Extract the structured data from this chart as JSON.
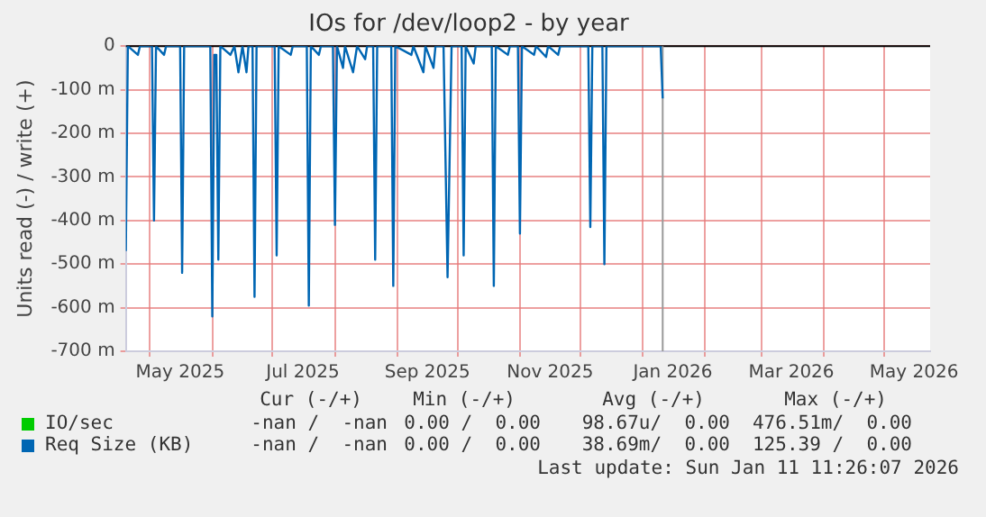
{
  "chart_data": {
    "type": "line",
    "title": "IOs for /dev/loop2 - by year",
    "ylabel": "Units read (-) / write (+)",
    "xlim": [
      "2025-04-19",
      "2026-05-24"
    ],
    "xticks": [
      {
        "value": "2025-05-01",
        "label": null
      },
      {
        "value": "2025-05-16",
        "label": "May 2025"
      },
      {
        "value": "2025-06-01",
        "label": null
      },
      {
        "value": "2025-07-01",
        "label": null
      },
      {
        "value": "2025-07-16",
        "label": "Jul 2025"
      },
      {
        "value": "2025-08-01",
        "label": null
      },
      {
        "value": "2025-09-01",
        "label": null
      },
      {
        "value": "2025-09-16",
        "label": "Sep 2025"
      },
      {
        "value": "2025-10-01",
        "label": null
      },
      {
        "value": "2025-11-01",
        "label": null
      },
      {
        "value": "2025-11-16",
        "label": "Nov 2025"
      },
      {
        "value": "2025-12-01",
        "label": null
      },
      {
        "value": "2026-01-01",
        "label": null
      },
      {
        "value": "2026-01-16",
        "label": "Jan 2026"
      },
      {
        "value": "2026-02-01",
        "label": null
      },
      {
        "value": "2026-03-01",
        "label": null
      },
      {
        "value": "2026-03-16",
        "label": "Mar 2026"
      },
      {
        "value": "2026-04-01",
        "label": null
      },
      {
        "value": "2026-05-01",
        "label": null
      },
      {
        "value": "2026-05-16",
        "label": "May 2026"
      }
    ],
    "ylim": [
      -700,
      0
    ],
    "yticks": [
      {
        "value": 0,
        "label": "0"
      },
      {
        "value": -100,
        "label": "-100 m"
      },
      {
        "value": -200,
        "label": "-200 m"
      },
      {
        "value": -300,
        "label": "-300 m"
      },
      {
        "value": -400,
        "label": "-400 m"
      },
      {
        "value": -500,
        "label": "-500 m"
      },
      {
        "value": -600,
        "label": "-600 m"
      },
      {
        "value": -700,
        "label": "-700 m"
      }
    ],
    "grid": true,
    "legend": "bottom",
    "marker": "none",
    "line_style": "solid",
    "ref_lines": [
      {
        "axis": "y",
        "value": 0,
        "color": "#000000"
      },
      {
        "axis": "x",
        "value": "2026-01-11",
        "color": "#999999"
      }
    ],
    "series": [
      {
        "name": "IO/sec",
        "color": "#00cc00"
      },
      {
        "name": "Req Size (KB)",
        "color": "#0066b3",
        "x": [
          "2025-04-19",
          "2025-04-20",
          "2025-04-25",
          "2025-04-26",
          "2025-05-02",
          "2025-05-03",
          "2025-05-04",
          "2025-05-08",
          "2025-05-09",
          "2025-05-16",
          "2025-05-17",
          "2025-05-18",
          "2025-05-31",
          "2025-06-01",
          "2025-06-02",
          "2025-06-03",
          "2025-06-04",
          "2025-06-05",
          "2025-06-10",
          "2025-06-12",
          "2025-06-14",
          "2025-06-16",
          "2025-06-18",
          "2025-06-19",
          "2025-06-21",
          "2025-06-22",
          "2025-06-23",
          "2025-07-02",
          "2025-07-03",
          "2025-07-04",
          "2025-07-10",
          "2025-07-11",
          "2025-07-18",
          "2025-07-19",
          "2025-07-20",
          "2025-07-24",
          "2025-07-25",
          "2025-07-31",
          "2025-08-01",
          "2025-08-02",
          "2025-08-05",
          "2025-08-06",
          "2025-08-10",
          "2025-08-12",
          "2025-08-16",
          "2025-08-17",
          "2025-08-20",
          "2025-08-21",
          "2025-08-22",
          "2025-08-29",
          "2025-08-30",
          "2025-08-31",
          "2025-09-08",
          "2025-09-09",
          "2025-09-14",
          "2025-09-15",
          "2025-09-19",
          "2025-09-20",
          "2025-09-24",
          "2025-09-26",
          "2025-09-28",
          "2025-10-03",
          "2025-10-04",
          "2025-10-05",
          "2025-10-09",
          "2025-10-10",
          "2025-10-18",
          "2025-10-19",
          "2025-10-20",
          "2025-10-26",
          "2025-10-27",
          "2025-10-31",
          "2025-11-01",
          "2025-11-02",
          "2025-11-08",
          "2025-11-09",
          "2025-11-14",
          "2025-11-15",
          "2025-11-20",
          "2025-11-21",
          "2025-12-05",
          "2025-12-06",
          "2025-12-07",
          "2025-12-12",
          "2025-12-13",
          "2025-12-14",
          "2026-01-10",
          "2026-01-11"
        ],
        "values": [
          -470,
          0,
          -20,
          0,
          0,
          -400,
          0,
          -20,
          0,
          0,
          -520,
          0,
          0,
          -620,
          -20,
          -20,
          -490,
          0,
          -20,
          0,
          -60,
          0,
          -60,
          0,
          0,
          -575,
          0,
          0,
          -480,
          0,
          -20,
          0,
          0,
          -595,
          0,
          -20,
          0,
          0,
          -410,
          0,
          -50,
          0,
          -60,
          0,
          -30,
          0,
          0,
          -490,
          0,
          0,
          -550,
          0,
          -20,
          0,
          -60,
          0,
          -50,
          0,
          0,
          -530,
          0,
          0,
          -480,
          0,
          -40,
          0,
          0,
          -550,
          0,
          -20,
          0,
          0,
          -430,
          0,
          -20,
          0,
          -25,
          0,
          -20,
          0,
          0,
          -415,
          0,
          0,
          -500,
          0,
          0,
          -120
        ]
      }
    ],
    "annotations": [
      "Cur (-/+)",
      "Min (-/+)",
      "Avg (-/+)",
      "Max (-/+)",
      "-nan /  -nan",
      "0.00 /  0.00",
      "98.67u/  0.00",
      "476.51m/  0.00",
      "-nan /  -nan",
      "0.00 /  0.00",
      "38.69m/  0.00",
      "125.39 /  0.00",
      "Last update: Sun Jan 11 11:26:07 2026"
    ]
  }
}
